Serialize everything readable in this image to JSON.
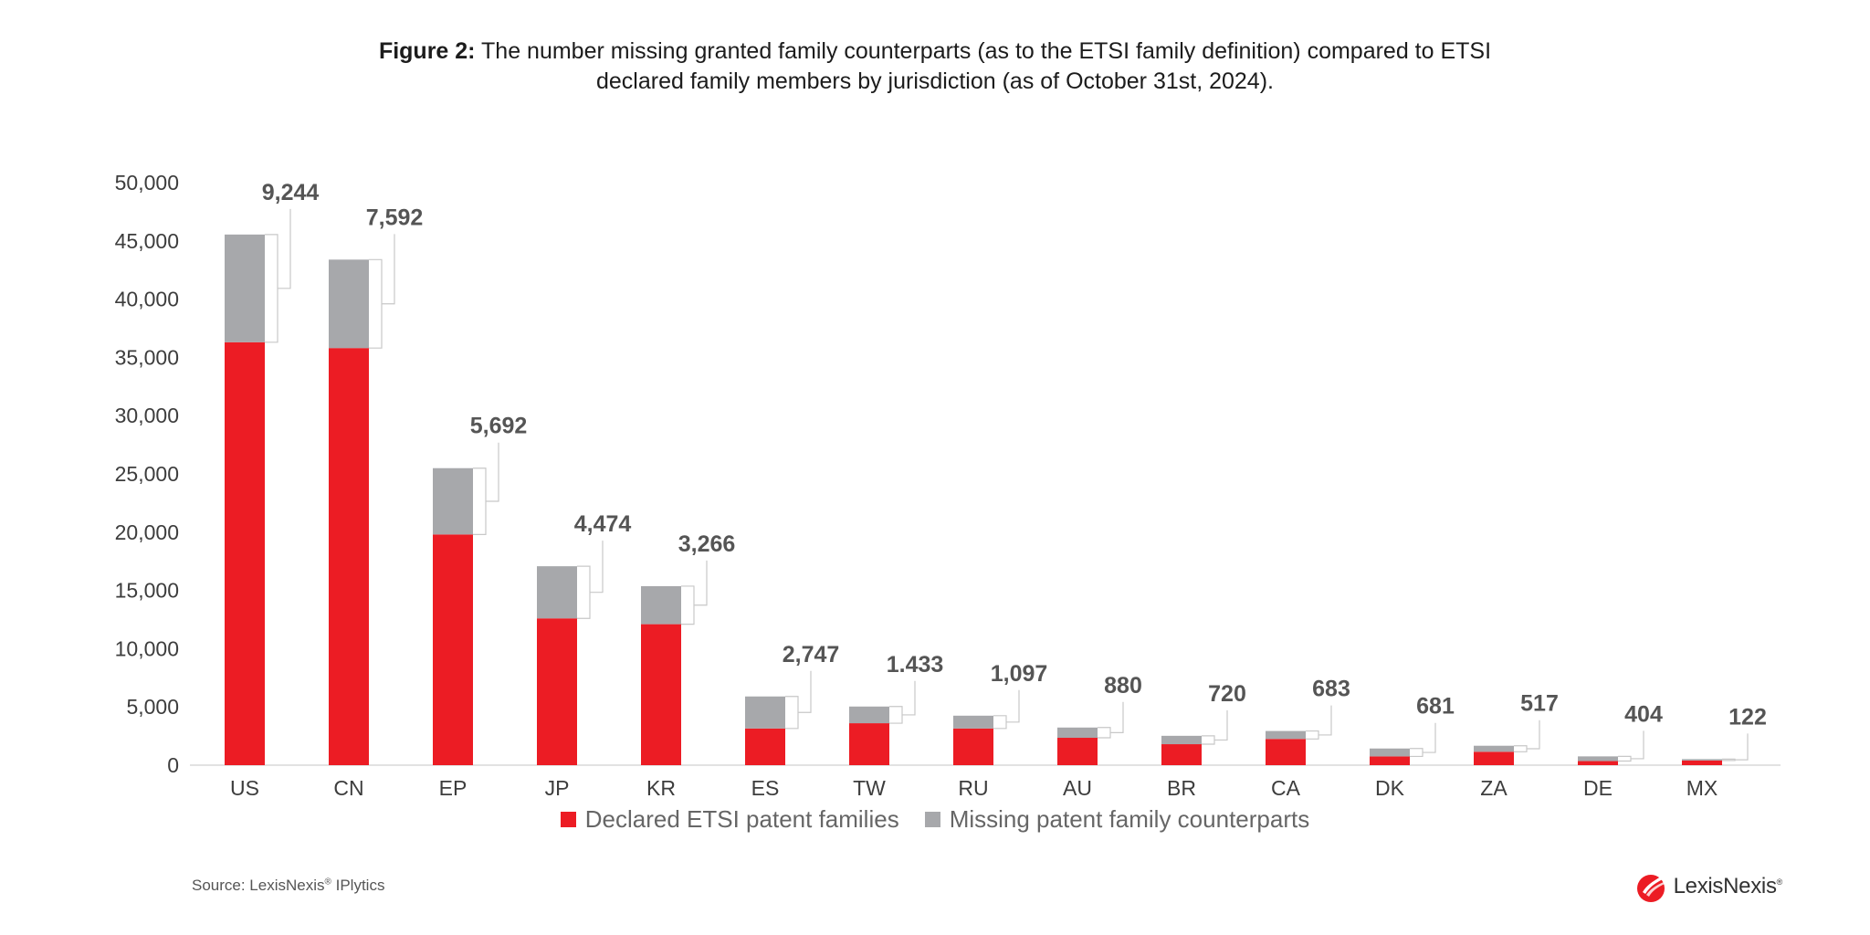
{
  "title": {
    "bold": "Figure 2:",
    "line1": "The number missing granted family counterparts (as to the ETSI family definition) compared to ETSI",
    "line2": "declared family members by jurisdiction (as of October 31st, 2024)."
  },
  "source": {
    "prefix": "Source: LexisNexis",
    "mark": "®",
    "suffix": " IPlytics"
  },
  "logo": {
    "text": "LexisNexis",
    "mark": "®"
  },
  "colors": {
    "declared": "#ec1c24",
    "missing": "#a7a8ab",
    "axis": "#d9d9d9"
  },
  "chart_data": {
    "type": "bar",
    "stacked": true,
    "categories": [
      "US",
      "CN",
      "EP",
      "JP",
      "KR",
      "ES",
      "TW",
      "RU",
      "AU",
      "BR",
      "CA",
      "DK",
      "ZA",
      "DE",
      "MX"
    ],
    "series": [
      {
        "name": "Declared ETSI patent families",
        "values": [
          36300,
          35800,
          19800,
          12600,
          12100,
          3150,
          3600,
          3150,
          2350,
          1800,
          2250,
          750,
          1150,
          350,
          400
        ]
      },
      {
        "name": "Missing patent family counterparts",
        "values": [
          9244,
          7592,
          5692,
          4474,
          3266,
          2747,
          1433,
          1097,
          880,
          720,
          683,
          681,
          517,
          404,
          122
        ]
      }
    ],
    "data_labels": [
      "9,244",
      "7,592",
      "5,692",
      "4,474",
      "3,266",
      "2,747",
      "1.433",
      "1,097",
      "880",
      "720",
      "683",
      "681",
      "517",
      "404",
      "122"
    ],
    "y_ticks": [
      "0",
      "5,000",
      "10,000",
      "15,000",
      "20,000",
      "25,000",
      "30,000",
      "35,000",
      "40,000",
      "45,000",
      "50,000"
    ],
    "ylim": [
      0,
      50000
    ],
    "legend_position": "bottom",
    "grid": false
  }
}
